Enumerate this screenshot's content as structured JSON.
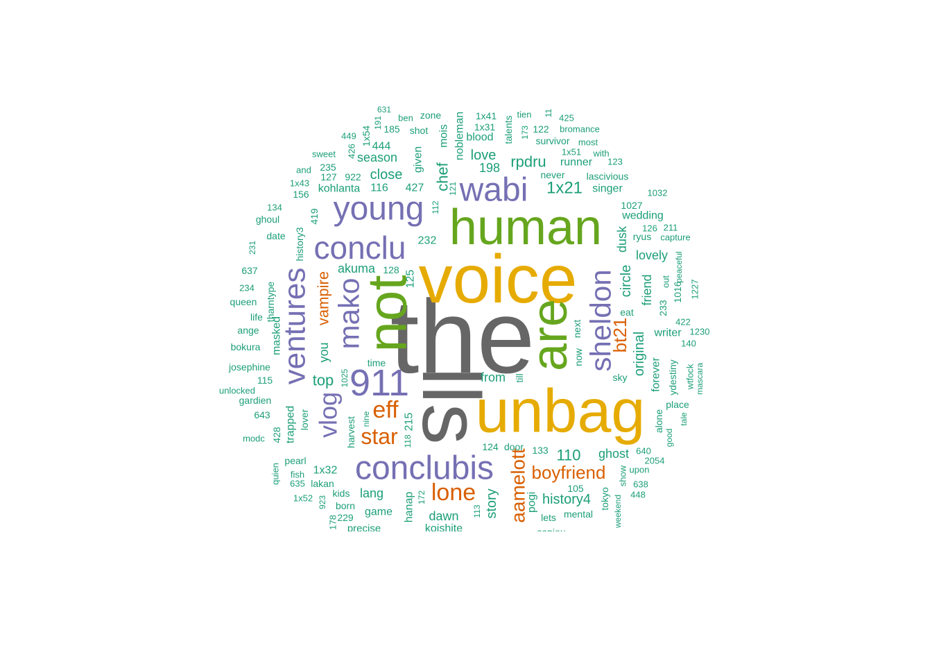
{
  "colors": {
    "gray": "#666666",
    "gold": "#E6AB02",
    "green": "#66A61E",
    "purple": "#7570B3",
    "orange": "#D95F02",
    "teal": "#1B9E77"
  },
  "words": [
    {
      "text": "the",
      "color": "gray"
    },
    {
      "text": "lls",
      "color": "gray"
    },
    {
      "text": "voice",
      "color": "gold"
    },
    {
      "text": "unbag",
      "color": "gold"
    },
    {
      "text": "human",
      "color": "green"
    },
    {
      "text": "not",
      "color": "green"
    },
    {
      "text": "are",
      "color": "green"
    },
    {
      "text": "young",
      "color": "purple"
    },
    {
      "text": "wabi",
      "color": "purple"
    },
    {
      "text": "conclu",
      "color": "purple"
    },
    {
      "text": "ventures",
      "color": "purple"
    },
    {
      "text": "mako",
      "color": "purple"
    },
    {
      "text": "911",
      "color": "purple"
    },
    {
      "text": "sheldon",
      "color": "purple"
    },
    {
      "text": "conclubis",
      "color": "purple"
    },
    {
      "text": "vlog",
      "color": "purple"
    },
    {
      "text": "eff",
      "color": "orange"
    },
    {
      "text": "star",
      "color": "orange"
    },
    {
      "text": "lone",
      "color": "orange"
    },
    {
      "text": "boyfriend",
      "color": "orange"
    },
    {
      "text": "aamelott",
      "color": "orange"
    },
    {
      "text": "vampire",
      "color": "orange"
    },
    {
      "text": "bt21",
      "color": "orange"
    },
    {
      "text": "1x21",
      "color": "teal"
    },
    {
      "text": "rpdru",
      "color": "teal"
    },
    {
      "text": "chef",
      "color": "teal"
    },
    {
      "text": "love",
      "color": "teal"
    },
    {
      "text": "close",
      "color": "teal"
    },
    {
      "text": "top",
      "color": "teal"
    },
    {
      "text": "110",
      "color": "teal"
    },
    {
      "text": "history4",
      "color": "teal"
    },
    {
      "text": "original",
      "color": "teal"
    },
    {
      "text": "circle",
      "color": "teal"
    },
    {
      "text": "story",
      "color": "teal"
    },
    {
      "text": "lovely",
      "color": "teal"
    },
    {
      "text": "ghost",
      "color": "teal"
    },
    {
      "text": "wedding",
      "color": "teal"
    },
    {
      "text": "singer",
      "color": "teal"
    },
    {
      "text": "runner",
      "color": "teal"
    },
    {
      "text": "198",
      "color": "teal"
    },
    {
      "text": "season",
      "color": "teal"
    },
    {
      "text": "444",
      "color": "teal"
    },
    {
      "text": "kohlanta",
      "color": "teal"
    },
    {
      "text": "akuma",
      "color": "teal"
    },
    {
      "text": "lang",
      "color": "teal"
    },
    {
      "text": "1x32",
      "color": "teal"
    },
    {
      "text": "dawn",
      "color": "teal"
    },
    {
      "text": "from",
      "color": "teal"
    },
    {
      "text": "forever",
      "color": "teal"
    },
    {
      "text": "writer",
      "color": "teal"
    },
    {
      "text": "friend",
      "color": "teal"
    },
    {
      "text": "dusk",
      "color": "teal"
    },
    {
      "text": "ryus",
      "color": "teal"
    },
    {
      "text": "1027",
      "color": "teal"
    },
    {
      "text": "232",
      "color": "teal"
    },
    {
      "text": "427",
      "color": "teal"
    },
    {
      "text": "116",
      "color": "teal"
    },
    {
      "text": "922",
      "color": "teal"
    },
    {
      "text": "127",
      "color": "teal"
    },
    {
      "text": "235",
      "color": "teal"
    },
    {
      "text": "given",
      "color": "teal"
    },
    {
      "text": "mois",
      "color": "teal"
    },
    {
      "text": "nobleman",
      "color": "teal"
    },
    {
      "text": "blood",
      "color": "teal"
    },
    {
      "text": "1x31",
      "color": "teal"
    },
    {
      "text": "1x41",
      "color": "teal"
    },
    {
      "text": "talents",
      "color": "teal"
    },
    {
      "text": "survivor",
      "color": "teal"
    },
    {
      "text": "122",
      "color": "teal"
    },
    {
      "text": "shot",
      "color": "teal"
    },
    {
      "text": "zone",
      "color": "teal"
    },
    {
      "text": "ben",
      "color": "teal"
    },
    {
      "text": "185",
      "color": "teal"
    },
    {
      "text": "1x54",
      "color": "teal"
    },
    {
      "text": "449",
      "color": "teal"
    },
    {
      "text": "426",
      "color": "teal"
    },
    {
      "text": "sweet",
      "color": "teal"
    },
    {
      "text": "and",
      "color": "teal"
    },
    {
      "text": "1x43",
      "color": "teal"
    },
    {
      "text": "156",
      "color": "teal"
    },
    {
      "text": "134",
      "color": "teal"
    },
    {
      "text": "ghoul",
      "color": "teal"
    },
    {
      "text": "date",
      "color": "teal"
    },
    {
      "text": "231",
      "color": "teal"
    },
    {
      "text": "637",
      "color": "teal"
    },
    {
      "text": "234",
      "color": "teal"
    },
    {
      "text": "queen",
      "color": "teal"
    },
    {
      "text": "life",
      "color": "teal"
    },
    {
      "text": "ange",
      "color": "teal"
    },
    {
      "text": "bokura",
      "color": "teal"
    },
    {
      "text": "josephine",
      "color": "teal"
    },
    {
      "text": "115",
      "color": "teal"
    },
    {
      "text": "unlocked",
      "color": "teal"
    },
    {
      "text": "gardien",
      "color": "teal"
    },
    {
      "text": "643",
      "color": "teal"
    },
    {
      "text": "modc",
      "color": "teal"
    },
    {
      "text": "428",
      "color": "teal"
    },
    {
      "text": "quien",
      "color": "teal"
    },
    {
      "text": "pearl",
      "color": "teal"
    },
    {
      "text": "fish",
      "color": "teal"
    },
    {
      "text": "635",
      "color": "teal"
    },
    {
      "text": "lakan",
      "color": "teal"
    },
    {
      "text": "1x52",
      "color": "teal"
    },
    {
      "text": "kids",
      "color": "teal"
    },
    {
      "text": "923",
      "color": "teal"
    },
    {
      "text": "born",
      "color": "teal"
    },
    {
      "text": "178",
      "color": "teal"
    },
    {
      "text": "229",
      "color": "teal"
    },
    {
      "text": "game",
      "color": "teal"
    },
    {
      "text": "precise",
      "color": "teal"
    },
    {
      "text": "hanap",
      "color": "teal"
    },
    {
      "text": "koishite",
      "color": "teal"
    },
    {
      "text": "172",
      "color": "teal"
    },
    {
      "text": "113",
      "color": "teal"
    },
    {
      "text": "124",
      "color": "teal"
    },
    {
      "text": "door",
      "color": "teal"
    },
    {
      "text": "133",
      "color": "teal"
    },
    {
      "text": "pogi",
      "color": "teal"
    },
    {
      "text": "lets",
      "color": "teal"
    },
    {
      "text": "sapiou",
      "color": "teal"
    },
    {
      "text": "mental",
      "color": "teal"
    },
    {
      "text": "105",
      "color": "teal"
    },
    {
      "text": "tokyo",
      "color": "teal"
    },
    {
      "text": "weekend",
      "color": "teal"
    },
    {
      "text": "show",
      "color": "teal"
    },
    {
      "text": "upon",
      "color": "teal"
    },
    {
      "text": "638",
      "color": "teal"
    },
    {
      "text": "448",
      "color": "teal"
    },
    {
      "text": "640",
      "color": "teal"
    },
    {
      "text": "2054",
      "color": "teal"
    },
    {
      "text": "alone",
      "color": "teal"
    },
    {
      "text": "good",
      "color": "teal"
    },
    {
      "text": "place",
      "color": "teal"
    },
    {
      "text": "tale",
      "color": "teal"
    },
    {
      "text": "ydestiny",
      "color": "teal"
    },
    {
      "text": "wtfock",
      "color": "teal"
    },
    {
      "text": "mascara",
      "color": "teal"
    },
    {
      "text": "140",
      "color": "teal"
    },
    {
      "text": "1230",
      "color": "teal"
    },
    {
      "text": "422",
      "color": "teal"
    },
    {
      "text": "1016",
      "color": "teal"
    },
    {
      "text": "1227",
      "color": "teal"
    },
    {
      "text": "233",
      "color": "teal"
    },
    {
      "text": "out",
      "color": "teal"
    },
    {
      "text": "peaceful",
      "color": "teal"
    },
    {
      "text": "capture",
      "color": "teal"
    },
    {
      "text": "211",
      "color": "teal"
    },
    {
      "text": "126",
      "color": "teal"
    },
    {
      "text": "1032",
      "color": "teal"
    },
    {
      "text": "123",
      "color": "teal"
    },
    {
      "text": "with",
      "color": "teal"
    },
    {
      "text": "most",
      "color": "teal"
    },
    {
      "text": "bromance",
      "color": "teal"
    },
    {
      "text": "425",
      "color": "teal"
    },
    {
      "text": "11",
      "color": "teal"
    },
    {
      "text": "tien",
      "color": "teal"
    },
    {
      "text": "173",
      "color": "teal"
    },
    {
      "text": "1x51",
      "color": "teal"
    },
    {
      "text": "never",
      "color": "teal"
    },
    {
      "text": "lascivious",
      "color": "teal"
    },
    {
      "text": "eat",
      "color": "teal"
    },
    {
      "text": "sky",
      "color": "teal"
    },
    {
      "text": "now",
      "color": "teal"
    },
    {
      "text": "next",
      "color": "teal"
    },
    {
      "text": "till",
      "color": "teal"
    },
    {
      "text": "time",
      "color": "teal"
    },
    {
      "text": "1025",
      "color": "teal"
    },
    {
      "text": "you",
      "color": "teal"
    },
    {
      "text": "tharntype",
      "color": "teal"
    },
    {
      "text": "masked",
      "color": "teal"
    },
    {
      "text": "history3",
      "color": "teal"
    },
    {
      "text": "419",
      "color": "teal"
    },
    {
      "text": "112",
      "color": "teal"
    },
    {
      "text": "121",
      "color": "teal"
    },
    {
      "text": "128",
      "color": "teal"
    },
    {
      "text": "125",
      "color": "teal"
    },
    {
      "text": "trapped",
      "color": "teal"
    },
    {
      "text": "lover",
      "color": "teal"
    },
    {
      "text": "harvest",
      "color": "teal"
    },
    {
      "text": "nine",
      "color": "teal"
    },
    {
      "text": "215",
      "color": "teal"
    },
    {
      "text": "118",
      "color": "teal"
    },
    {
      "text": "191",
      "color": "teal"
    },
    {
      "text": "631",
      "color": "teal"
    }
  ]
}
